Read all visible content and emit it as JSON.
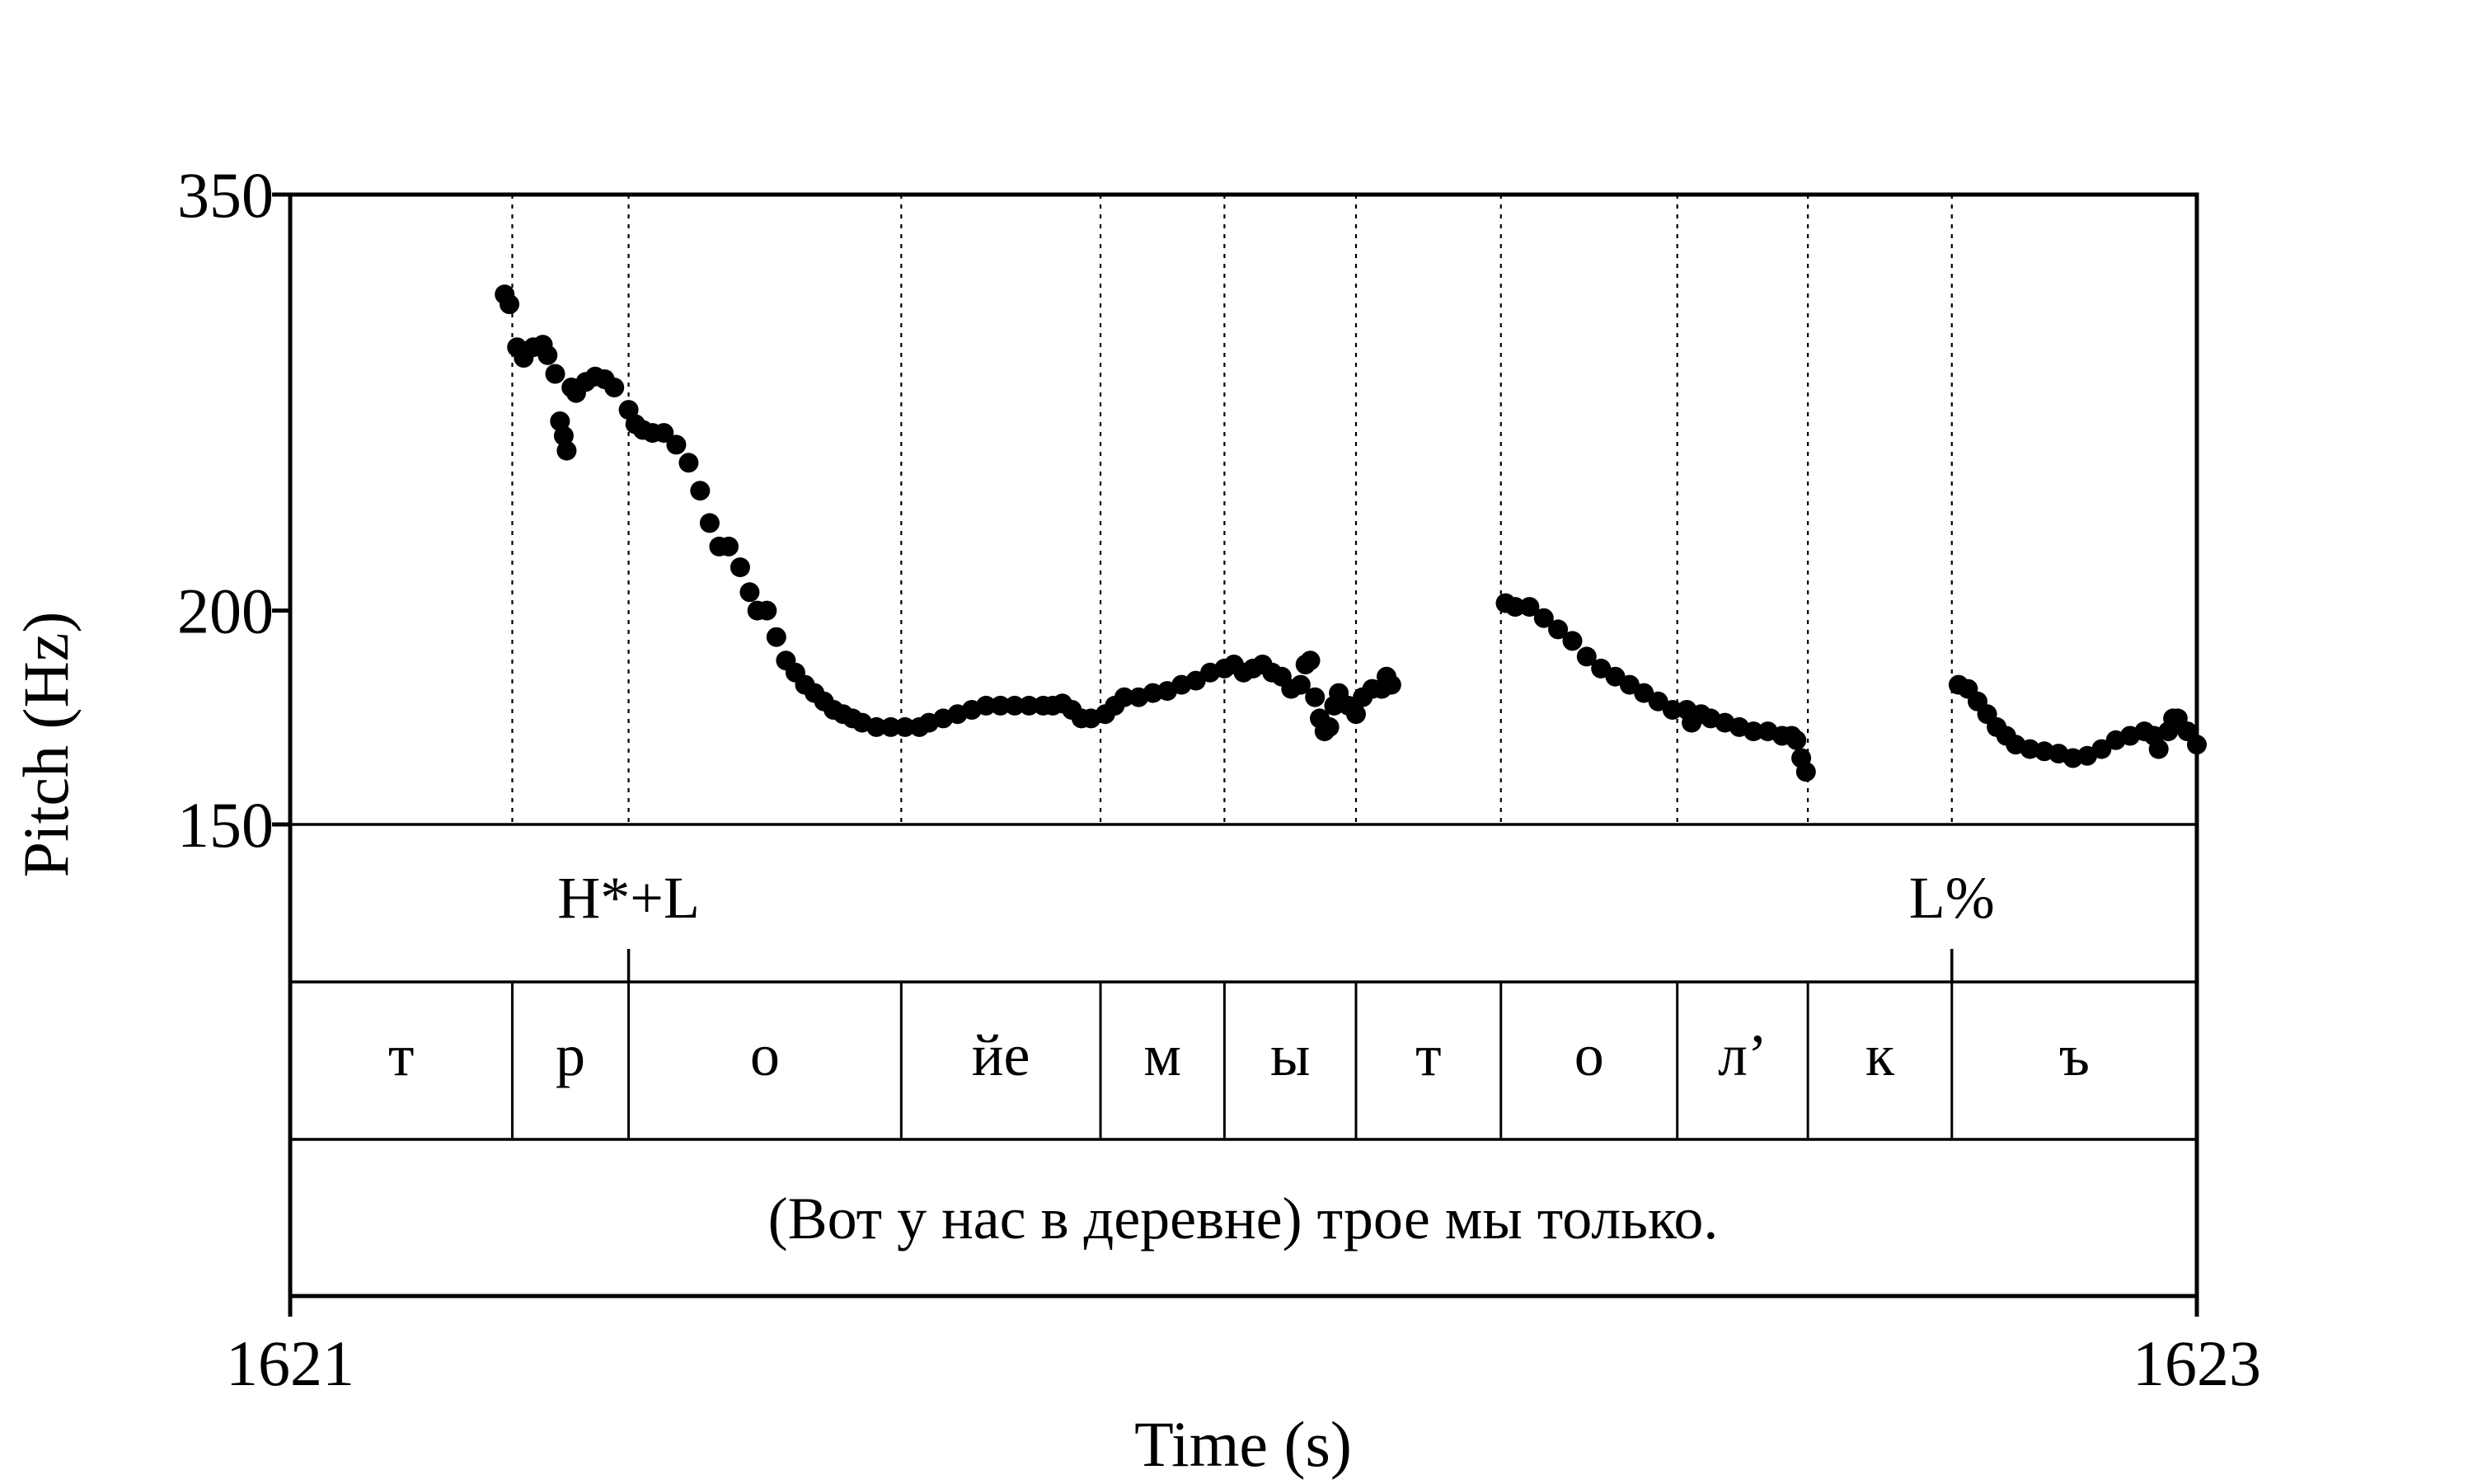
{
  "chart_data": {
    "type": "scatter",
    "xlabel": "Time (s)",
    "ylabel": "Pitch (Hz)",
    "x_ticks": [
      "1621",
      "1623"
    ],
    "y_ticks": [
      "350",
      "200",
      "150"
    ],
    "xlim": [
      1621,
      1623
    ],
    "ylim": [
      150,
      350
    ],
    "y_scale": "log",
    "series_color": "#000000",
    "boundaries": [
      1621.233,
      1621.355,
      1621.641,
      1621.85,
      1621.98,
      1622.118,
      1622.27,
      1622.455,
      1622.592,
      1622.743
    ],
    "tones": [
      {
        "label": "H*+L",
        "time": 1621.355
      },
      {
        "label": "L%",
        "time": 1622.743
      }
    ],
    "segments": [
      {
        "label": "т",
        "start": 1621.0,
        "end": 1621.233
      },
      {
        "label": "р",
        "start": 1621.233,
        "end": 1621.355
      },
      {
        "label": "о",
        "start": 1621.355,
        "end": 1621.641
      },
      {
        "label": "йе",
        "start": 1621.641,
        "end": 1621.85
      },
      {
        "label": "м",
        "start": 1621.85,
        "end": 1621.98
      },
      {
        "label": "ы",
        "start": 1621.98,
        "end": 1622.118
      },
      {
        "label": "т",
        "start": 1622.118,
        "end": 1622.27
      },
      {
        "label": "о",
        "start": 1622.27,
        "end": 1622.455
      },
      {
        "label": "л’",
        "start": 1622.455,
        "end": 1622.592
      },
      {
        "label": "к",
        "start": 1622.592,
        "end": 1622.743
      },
      {
        "label": "ъ",
        "start": 1622.743,
        "end": 1623.0
      }
    ],
    "sentence": "(Вот у нас в деревне) трое мы только.",
    "pitch_points": [
      [
        1621.225,
        306
      ],
      [
        1621.23,
        302
      ],
      [
        1621.238,
        285
      ],
      [
        1621.245,
        281
      ],
      [
        1621.255,
        285
      ],
      [
        1621.265,
        286
      ],
      [
        1621.27,
        282
      ],
      [
        1621.278,
        275
      ],
      [
        1621.283,
        258
      ],
      [
        1621.287,
        253
      ],
      [
        1621.29,
        248
      ],
      [
        1621.295,
        270
      ],
      [
        1621.3,
        268
      ],
      [
        1621.31,
        272
      ],
      [
        1621.32,
        274
      ],
      [
        1621.33,
        273
      ],
      [
        1621.34,
        270
      ],
      [
        1621.355,
        262
      ],
      [
        1621.362,
        257
      ],
      [
        1621.37,
        255
      ],
      [
        1621.38,
        254
      ],
      [
        1621.392,
        254
      ],
      [
        1621.405,
        250
      ],
      [
        1621.418,
        244
      ],
      [
        1621.43,
        235
      ],
      [
        1621.44,
        225
      ],
      [
        1621.45,
        218
      ],
      [
        1621.46,
        218
      ],
      [
        1621.472,
        212
      ],
      [
        1621.482,
        205
      ],
      [
        1621.49,
        200
      ],
      [
        1621.5,
        200
      ],
      [
        1621.51,
        193
      ],
      [
        1621.52,
        187
      ],
      [
        1621.53,
        184
      ],
      [
        1621.54,
        181
      ],
      [
        1621.55,
        179
      ],
      [
        1621.56,
        177
      ],
      [
        1621.57,
        175
      ],
      [
        1621.58,
        174
      ],
      [
        1621.59,
        173
      ],
      [
        1621.6,
        172
      ],
      [
        1621.615,
        171
      ],
      [
        1621.63,
        171
      ],
      [
        1621.645,
        171
      ],
      [
        1621.66,
        171
      ],
      [
        1621.67,
        172
      ],
      [
        1621.685,
        173
      ],
      [
        1621.7,
        174
      ],
      [
        1621.715,
        175
      ],
      [
        1621.73,
        176
      ],
      [
        1621.745,
        176
      ],
      [
        1621.76,
        176
      ],
      [
        1621.775,
        176
      ],
      [
        1621.79,
        176
      ],
      [
        1621.8,
        176
      ],
      [
        1621.81,
        176.5
      ],
      [
        1621.82,
        175
      ],
      [
        1621.83,
        173
      ],
      [
        1621.84,
        173
      ],
      [
        1621.855,
        174
      ],
      [
        1621.865,
        176
      ],
      [
        1621.875,
        178
      ],
      [
        1621.89,
        178
      ],
      [
        1621.905,
        179
      ],
      [
        1621.92,
        179.5
      ],
      [
        1621.935,
        181
      ],
      [
        1621.95,
        182
      ],
      [
        1621.965,
        184
      ],
      [
        1621.98,
        185
      ],
      [
        1621.99,
        186
      ],
      [
        1622.0,
        184
      ],
      [
        1622.01,
        185
      ],
      [
        1622.02,
        186
      ],
      [
        1622.03,
        184
      ],
      [
        1622.04,
        183
      ],
      [
        1622.05,
        180
      ],
      [
        1622.06,
        181
      ],
      [
        1622.065,
        186
      ],
      [
        1622.07,
        187
      ],
      [
        1622.075,
        178
      ],
      [
        1622.08,
        173
      ],
      [
        1622.085,
        170
      ],
      [
        1622.09,
        171
      ],
      [
        1622.095,
        176
      ],
      [
        1622.1,
        179
      ],
      [
        1622.11,
        176
      ],
      [
        1622.118,
        174
      ],
      [
        1622.125,
        178
      ],
      [
        1622.135,
        180
      ],
      [
        1622.145,
        180
      ],
      [
        1622.15,
        183
      ],
      [
        1622.155,
        181
      ],
      [
        1622.275,
        202
      ],
      [
        1622.285,
        201
      ],
      [
        1622.3,
        201
      ],
      [
        1622.315,
        198
      ],
      [
        1622.33,
        195
      ],
      [
        1622.345,
        192
      ],
      [
        1622.36,
        188
      ],
      [
        1622.375,
        185
      ],
      [
        1622.39,
        183
      ],
      [
        1622.405,
        181
      ],
      [
        1622.42,
        179
      ],
      [
        1622.435,
        177
      ],
      [
        1622.45,
        175
      ],
      [
        1622.465,
        175
      ],
      [
        1622.47,
        172
      ],
      [
        1622.48,
        174
      ],
      [
        1622.49,
        173
      ],
      [
        1622.505,
        172
      ],
      [
        1622.52,
        171
      ],
      [
        1622.535,
        170
      ],
      [
        1622.55,
        170
      ],
      [
        1622.565,
        169
      ],
      [
        1622.575,
        169
      ],
      [
        1622.58,
        168
      ],
      [
        1622.585,
        164
      ],
      [
        1622.59,
        161
      ],
      [
        1622.75,
        181
      ],
      [
        1622.76,
        180
      ],
      [
        1622.77,
        177
      ],
      [
        1622.78,
        174
      ],
      [
        1622.79,
        171
      ],
      [
        1622.8,
        169
      ],
      [
        1622.81,
        167
      ],
      [
        1622.825,
        166
      ],
      [
        1622.84,
        165.5
      ],
      [
        1622.855,
        165
      ],
      [
        1622.87,
        164
      ],
      [
        1622.885,
        164.5
      ],
      [
        1622.9,
        166
      ],
      [
        1622.915,
        168
      ],
      [
        1622.93,
        169
      ],
      [
        1622.945,
        170
      ],
      [
        1622.955,
        169
      ],
      [
        1622.96,
        166
      ],
      [
        1622.97,
        170
      ],
      [
        1622.975,
        173
      ],
      [
        1622.98,
        173
      ],
      [
        1622.99,
        170
      ],
      [
        1623.0,
        167
      ]
    ]
  }
}
